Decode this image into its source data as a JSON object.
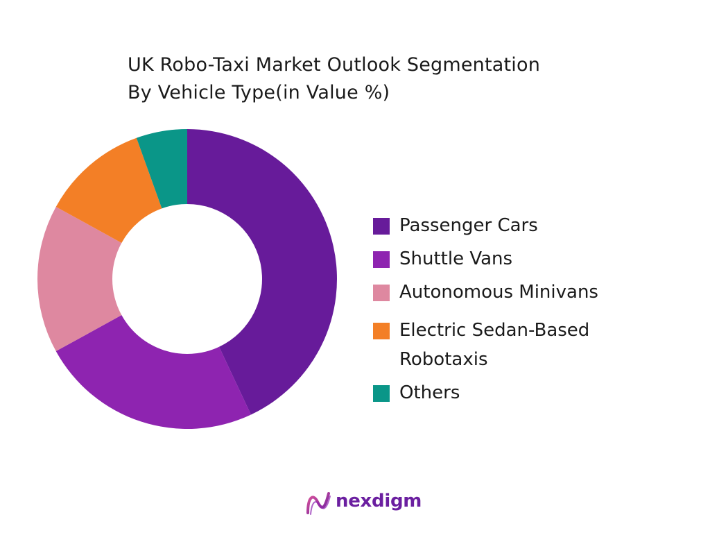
{
  "chart_data": {
    "type": "pie",
    "title_lines": [
      "UK Robo-Taxi Market Outlook Segmentation",
      "By Vehicle Type(in Value %)"
    ],
    "legend_position": "right",
    "donut": true,
    "categories": [
      "Passenger Cars",
      "Shuttle Vans",
      "Autonomous Minivans",
      "Electric Sedan-Based Robotaxis",
      "Others"
    ],
    "values": [
      43,
      24,
      16,
      11.5,
      5.5
    ],
    "colors": [
      "#671b9a",
      "#8e24b0",
      "#de88a0",
      "#f37f26",
      "#0a9688"
    ]
  },
  "legend": [
    {
      "lines": [
        "Passenger Cars"
      ]
    },
    {
      "lines": [
        "Shuttle Vans"
      ]
    },
    {
      "lines": [
        "Autonomous Minivans"
      ]
    },
    {
      "lines": [
        "Electric Sedan-Based",
        "Robotaxis"
      ]
    },
    {
      "lines": [
        "Others"
      ]
    }
  ],
  "brand": {
    "name": "nexdigm",
    "logo_icon": "nexdigm-logo-icon",
    "color": "#6b1fa0"
  }
}
